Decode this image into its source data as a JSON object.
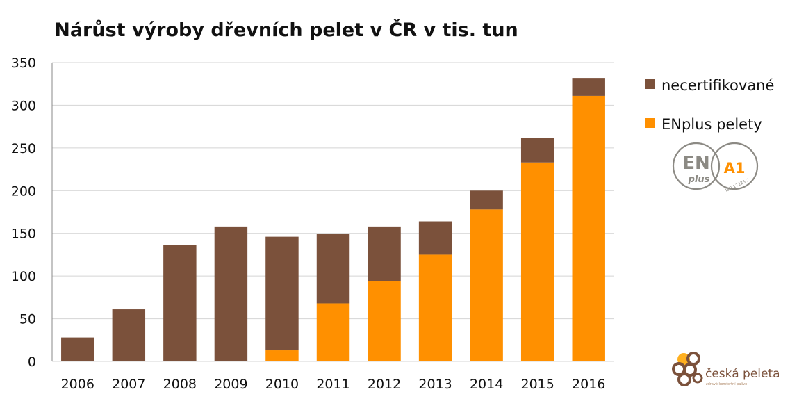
{
  "chart_data": {
    "type": "bar",
    "stacked": true,
    "title": "Nárůst výroby dřevních pelet v ČR v tis. tun",
    "xlabel": "",
    "ylabel": "",
    "categories": [
      "2006",
      "2007",
      "2008",
      "2009",
      "2010",
      "2011",
      "2012",
      "2013",
      "2014",
      "2015",
      "2016"
    ],
    "series": [
      {
        "name": "ENplus pelety",
        "color": "#ff9000",
        "values": [
          0,
          0,
          0,
          0,
          13,
          68,
          94,
          125,
          178,
          233,
          311
        ]
      },
      {
        "name": "necertifikované",
        "color": "#7b513b",
        "values": [
          28,
          61,
          136,
          158,
          133,
          81,
          64,
          39,
          22,
          29,
          21
        ]
      }
    ],
    "ylim": [
      0,
      350
    ],
    "yticks": [
      "0",
      "50",
      "100",
      "150",
      "200",
      "250",
      "300",
      "350"
    ],
    "grid": true,
    "legend_position": "right",
    "legend_order": [
      "necertifikované",
      "ENplus pelety"
    ]
  },
  "badge": {
    "en": "EN",
    "plus": "plus",
    "grade": "A1",
    "iso": "ISO 17225-2",
    "outline_color": "#8c8a84",
    "grade_color": "#ff9000"
  },
  "logo": {
    "name": "česká peleta",
    "tagline": "zdravé komfortní palivo",
    "icon": "pellet-cluster-icon"
  }
}
